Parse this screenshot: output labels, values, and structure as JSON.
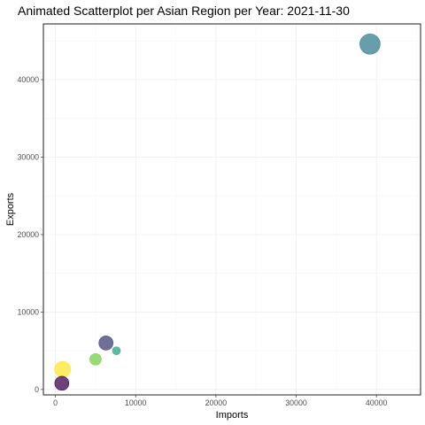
{
  "chart_data": {
    "type": "scatter",
    "title": "Animated Scatterplot per Asian Region per Year: 2021-11-30",
    "xlabel": "Imports",
    "ylabel": "Exports",
    "xlim": [
      -1500,
      45500
    ],
    "ylim": [
      -700,
      47200
    ],
    "xticks": [
      0,
      10000,
      20000,
      30000,
      40000
    ],
    "yticks": [
      0,
      10000,
      20000,
      30000,
      40000
    ],
    "xtick_labels": [
      "0",
      "10000",
      "20000",
      "30000",
      "40000"
    ],
    "ytick_labels": [
      "0",
      "10000",
      "20000",
      "30000",
      "40000"
    ],
    "grid": true,
    "legend": "none",
    "points": [
      {
        "x": 39200,
        "y": 44600,
        "size": 11.5,
        "color": "#3e8294"
      },
      {
        "x": 6300,
        "y": 6000,
        "size": 8,
        "color": "#46477a"
      },
      {
        "x": 7600,
        "y": 5000,
        "size": 4.5,
        "color": "#2fa98c"
      },
      {
        "x": 5000,
        "y": 3900,
        "size": 6.5,
        "color": "#7bd04e"
      },
      {
        "x": 900,
        "y": 2600,
        "size": 9,
        "color": "#fde637"
      },
      {
        "x": 800,
        "y": 800,
        "size": 8,
        "color": "#440d54"
      }
    ]
  }
}
